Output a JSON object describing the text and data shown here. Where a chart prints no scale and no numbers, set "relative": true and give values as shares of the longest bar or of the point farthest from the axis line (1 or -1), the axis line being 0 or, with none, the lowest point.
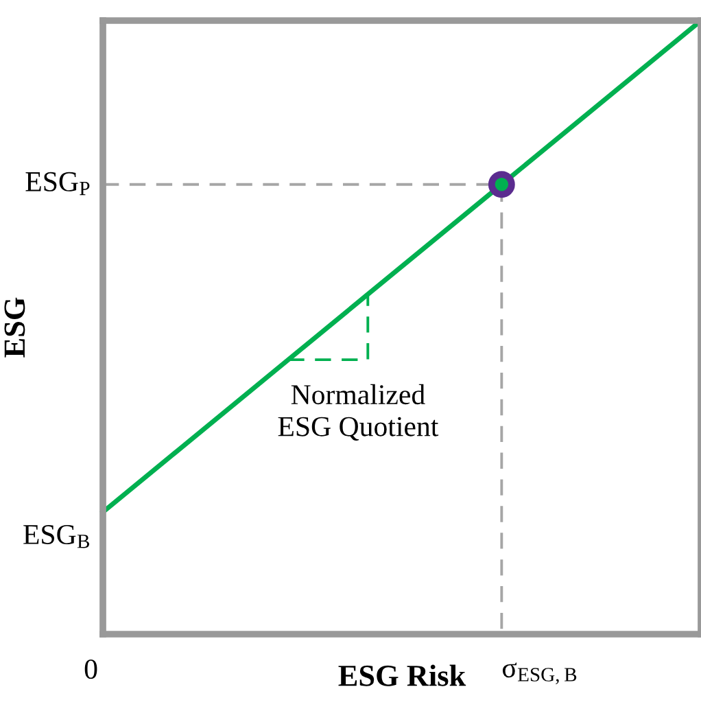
{
  "chart_data": {
    "type": "line",
    "relative": true,
    "xlabel": "ESG Risk",
    "ylabel": "ESG",
    "categories": [
      null,
      null,
      null,
      null
    ],
    "grid": false,
    "legend": false,
    "series": [
      {
        "color": "#00b050",
        "values": [
          0.199,
          0.466,
          0.733,
          1.0
        ]
      }
    ],
    "annotations": [
      "Normalized\nESG Quotient",
      "0",
      "ESG$_{B}$",
      "ESG$_{P}$",
      "σ$_{ESG,B}$"
    ]
  }
}
